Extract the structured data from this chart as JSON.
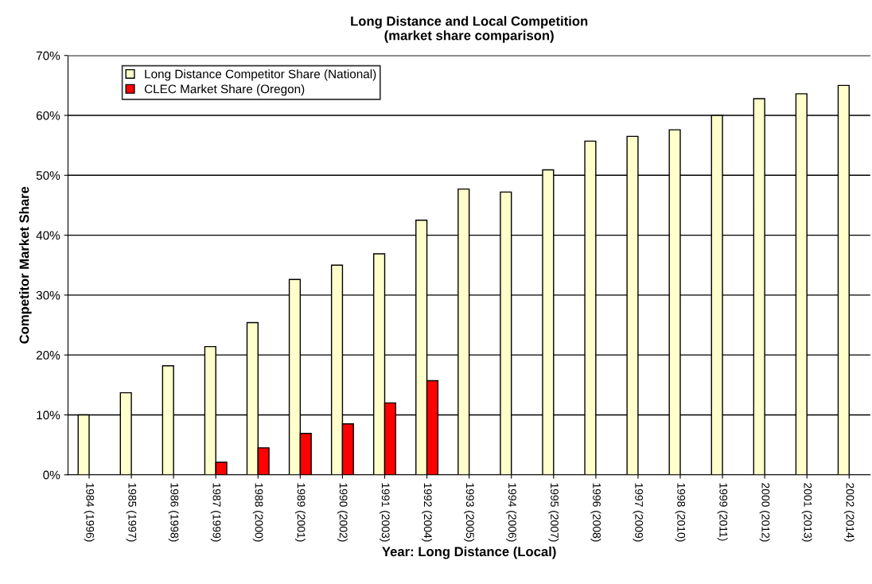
{
  "chart_data": {
    "type": "bar",
    "title": "Long Distance and Local Competition\n(market share comparison)",
    "xlabel": "Year: Long Distance (Local)",
    "ylabel": "Competitor Market Share",
    "categories": [
      "1984 (1996)",
      "1985 (1997)",
      "1986 (1998)",
      "1987 (1999)",
      "1988 (2000)",
      "1989 (2001)",
      "1990 (2002)",
      "1991 (2003)",
      "1992 (2004)",
      "1993 (2005)",
      "1994 (2006)",
      "1995 (2007)",
      "1996 (2008)",
      "1997 (2009)",
      "1998 (2010)",
      "1999 (2011)",
      "2000 (2012)",
      "2001 (2013)",
      "2002 (2014)"
    ],
    "series": [
      {
        "name": "Long Distance Competitor Share (National)",
        "color": "#ffffcc",
        "values": [
          10.0,
          13.7,
          18.2,
          21.4,
          25.4,
          32.6,
          35.0,
          36.9,
          42.5,
          47.7,
          47.2,
          50.9,
          55.7,
          56.5,
          57.6,
          60.0,
          62.8,
          63.6,
          65.0
        ]
      },
      {
        "name": "CLEC Market Share (Oregon)",
        "color": "#ff0000",
        "values": [
          null,
          null,
          null,
          2.1,
          4.5,
          6.9,
          8.5,
          12.0,
          15.7,
          null,
          null,
          null,
          null,
          null,
          null,
          null,
          null,
          null,
          null
        ]
      }
    ],
    "ylim": [
      0,
      70
    ],
    "yticks": [
      {
        "value": 0,
        "label": "0%"
      },
      {
        "value": 10,
        "label": "10%"
      },
      {
        "value": 20,
        "label": "20%"
      },
      {
        "value": 30,
        "label": "30%"
      },
      {
        "value": 40,
        "label": "40%"
      },
      {
        "value": 50,
        "label": "50%"
      },
      {
        "value": 60,
        "label": "60%"
      },
      {
        "value": 70,
        "label": "70%"
      }
    ],
    "grid": "y",
    "legend": "top left"
  }
}
